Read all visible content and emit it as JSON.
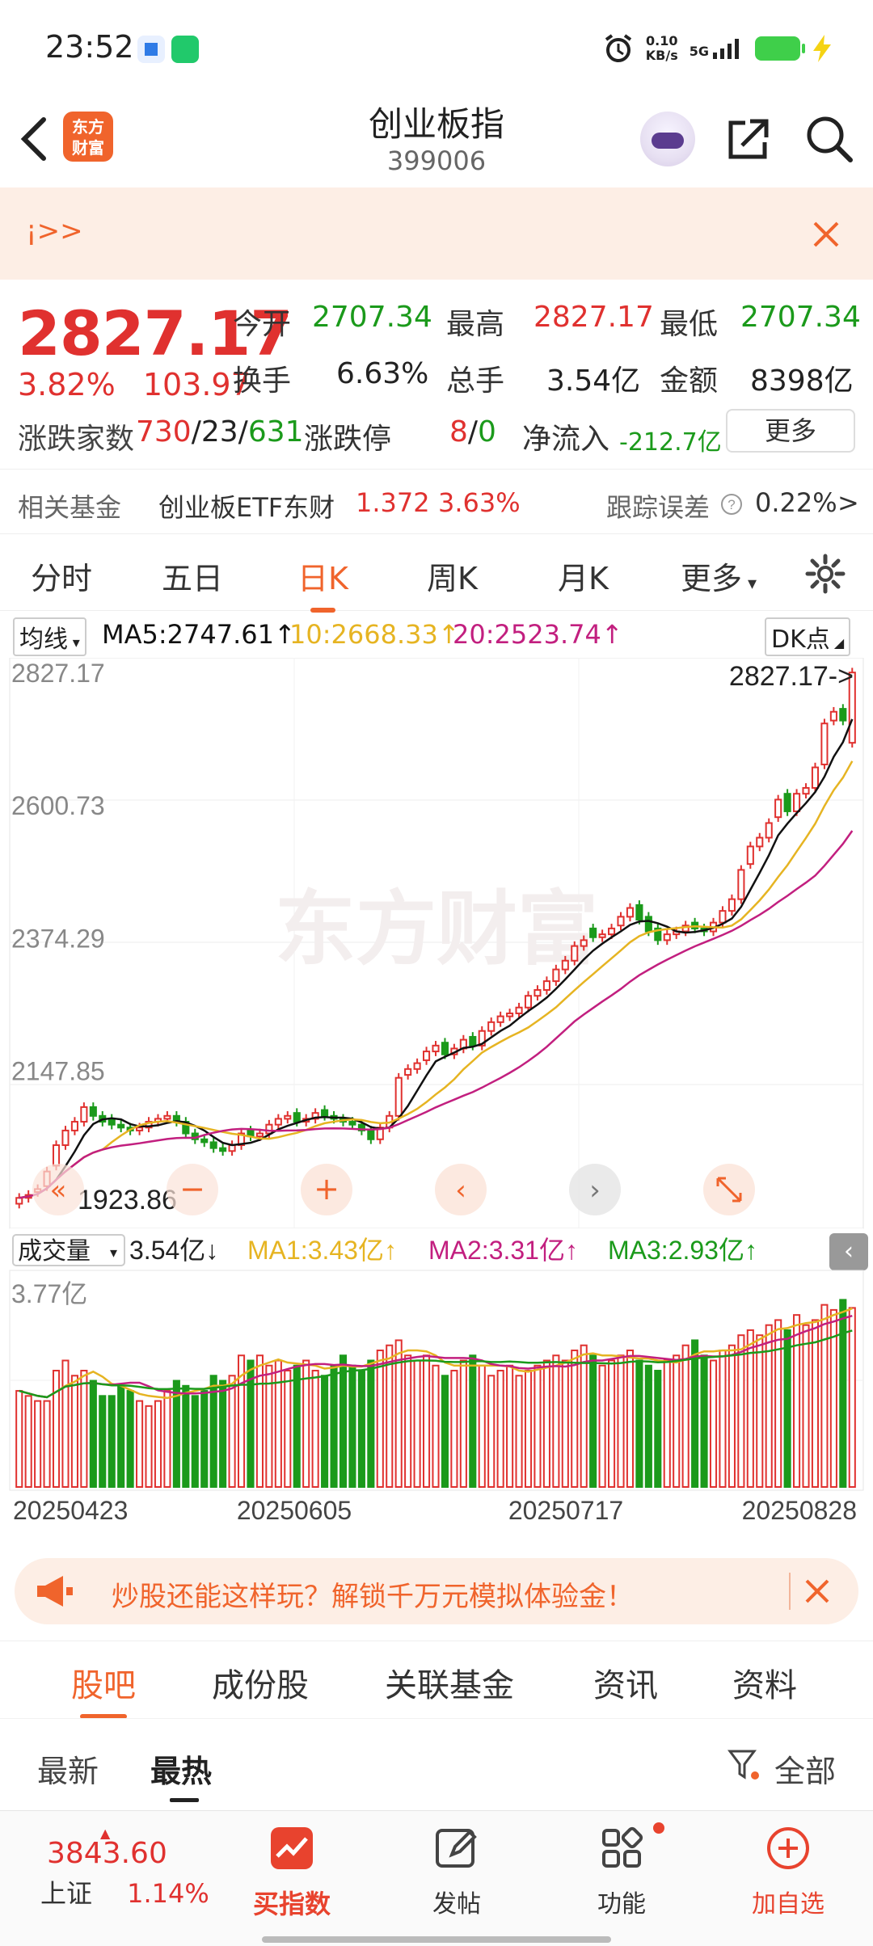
{
  "status_bar": {
    "time": "23:52",
    "net_speed_value": "0.10",
    "net_speed_unit": "KB/s",
    "network": "5G"
  },
  "header": {
    "logo_text_line1": "东方",
    "logo_text_line2": "财富",
    "title": "创业板指",
    "code": "399006"
  },
  "banner": {
    "text": "¡>>"
  },
  "quote": {
    "price": "2827.17",
    "change_pct": "3.82%",
    "change_abs": "103.97",
    "open_label": "今开",
    "open": "2707.34",
    "high_label": "最高",
    "high": "2827.17",
    "low_label": "最低",
    "low": "2707.34",
    "turnover_label": "换手",
    "turnover": "6.63%",
    "volume_label": "总手",
    "volume": "3.54亿",
    "amount_label": "金额",
    "amount": "8398亿",
    "breadth_label": "涨跌家数",
    "breadth_up": "730",
    "breadth_flat": "23",
    "breadth_down": "631",
    "limit_label": "涨跌停",
    "limit_up": "8",
    "limit_down": "0",
    "netflow_label": "净流入",
    "netflow": "-212.7亿",
    "more_button": "更多"
  },
  "fund_row": {
    "label": "相关基金",
    "fund_name": "创业板ETF东财",
    "fund_price": "1.372",
    "fund_change": "3.63%",
    "tracking_label": "跟踪误差",
    "tracking_value": "0.22%",
    "arrow": ">"
  },
  "chart_tabs": [
    "分时",
    "五日",
    "日K",
    "周K",
    "月K",
    "更多"
  ],
  "ma_row": {
    "selector": "均线",
    "ma5": "MA5:2747.61",
    "ma10": "10:2668.33",
    "ma20": "20:2523.74",
    "up_arrow": "↑",
    "down_arrow": "↓",
    "dk_label": "DK点"
  },
  "colors": {
    "up": "#e0312f",
    "down": "#1b9a1b",
    "ma5": "#111111",
    "ma10": "#e6b422",
    "ma20": "#c21f7f",
    "accent": "#f0642c"
  },
  "chart_data": {
    "type": "candlestick",
    "price_axis_labels": [
      "2827.17",
      "2600.73",
      "2374.29",
      "2147.85"
    ],
    "price_axis_values": [
      2827.17,
      2600.73,
      2374.29,
      2147.85
    ],
    "ylim": [
      1900,
      2830
    ],
    "max_marker": "2827.17->",
    "min_marker": "1923.86",
    "volume_selector": "成交量",
    "volume_current": "3.54亿",
    "vol_ma1": "MA1:3.43亿",
    "vol_ma2": "MA2:3.31亿",
    "vol_ma3": "MA3:2.93亿",
    "volume_axis_label": "3.77亿",
    "volume_ylim": [
      0,
      3.77
    ],
    "date_labels": [
      "20250423",
      "20250605",
      "20250717",
      "20250828"
    ],
    "closes": [
      1930,
      1935,
      1945,
      1975,
      2020,
      2045,
      2060,
      2085,
      2070,
      2060,
      2055,
      2050,
      2045,
      2050,
      2060,
      2065,
      2070,
      2060,
      2040,
      2030,
      2025,
      2015,
      2010,
      2020,
      2040,
      2035,
      2040,
      2055,
      2065,
      2070,
      2060,
      2065,
      2075,
      2070,
      2065,
      2060,
      2055,
      2045,
      2030,
      2050,
      2070,
      2135,
      2150,
      2160,
      2180,
      2190,
      2175,
      2185,
      2200,
      2190,
      2215,
      2230,
      2240,
      2245,
      2255,
      2275,
      2285,
      2300,
      2320,
      2335,
      2360,
      2370,
      2375,
      2380,
      2390,
      2410,
      2425,
      2405,
      2385,
      2370,
      2380,
      2385,
      2395,
      2390,
      2385,
      2400,
      2420,
      2440,
      2490,
      2530,
      2545,
      2570,
      2610,
      2590,
      2620,
      2630,
      2665,
      2740,
      2760,
      2745,
      2827
    ],
    "opens": [
      1920,
      1930,
      1940,
      1950,
      1985,
      2020,
      2045,
      2060,
      2085,
      2070,
      2065,
      2055,
      2050,
      2045,
      2050,
      2060,
      2065,
      2070,
      2060,
      2040,
      2030,
      2025,
      2015,
      2010,
      2020,
      2045,
      2035,
      2040,
      2055,
      2065,
      2075,
      2060,
      2065,
      2080,
      2070,
      2065,
      2060,
      2055,
      2045,
      2030,
      2050,
      2070,
      2140,
      2150,
      2165,
      2180,
      2195,
      2175,
      2185,
      2205,
      2190,
      2215,
      2230,
      2240,
      2245,
      2255,
      2275,
      2285,
      2300,
      2320,
      2335,
      2360,
      2390,
      2375,
      2380,
      2395,
      2410,
      2430,
      2410,
      2390,
      2370,
      2380,
      2385,
      2400,
      2390,
      2385,
      2400,
      2420,
      2440,
      2500,
      2530,
      2545,
      2580,
      2620,
      2590,
      2620,
      2630,
      2670,
      2745,
      2765,
      2707
    ],
    "volumes": [
      1.9,
      1.8,
      1.7,
      1.7,
      2.3,
      2.5,
      2.2,
      2.3,
      2.1,
      1.8,
      1.8,
      2.0,
      1.9,
      1.7,
      1.6,
      1.7,
      1.9,
      2.1,
      2.0,
      1.8,
      1.9,
      2.2,
      2.1,
      2.2,
      2.6,
      2.5,
      2.6,
      2.4,
      2.5,
      2.3,
      2.4,
      2.5,
      2.3,
      2.2,
      2.4,
      2.6,
      2.4,
      2.3,
      2.5,
      2.7,
      2.8,
      2.9,
      2.6,
      2.5,
      2.6,
      2.4,
      2.2,
      2.3,
      2.5,
      2.6,
      2.4,
      2.2,
      2.3,
      2.4,
      2.2,
      2.3,
      2.4,
      2.5,
      2.6,
      2.5,
      2.7,
      2.8,
      2.6,
      2.4,
      2.5,
      2.6,
      2.7,
      2.5,
      2.4,
      2.3,
      2.5,
      2.6,
      2.8,
      2.9,
      2.6,
      2.5,
      2.7,
      2.8,
      3.0,
      3.1,
      3.0,
      3.2,
      3.3,
      3.1,
      3.4,
      3.2,
      3.3,
      3.6,
      3.5,
      3.7,
      3.54
    ]
  },
  "promo": {
    "text": "炒股还能这样玩？解锁千万元模拟体验金！"
  },
  "sub_tabs": [
    "股吧",
    "成份股",
    "关联基金",
    "资讯",
    "资料"
  ],
  "sort_tabs": {
    "latest": "最新",
    "hottest": "最热",
    "filter": "全部"
  },
  "bottom_nav": {
    "index_value": "3843.60",
    "index_name": "上证",
    "index_change": "1.14%",
    "buy_index": "买指数",
    "post": "发帖",
    "functions": "功能",
    "add_watch": "加自选"
  },
  "watermark": "东方财富"
}
